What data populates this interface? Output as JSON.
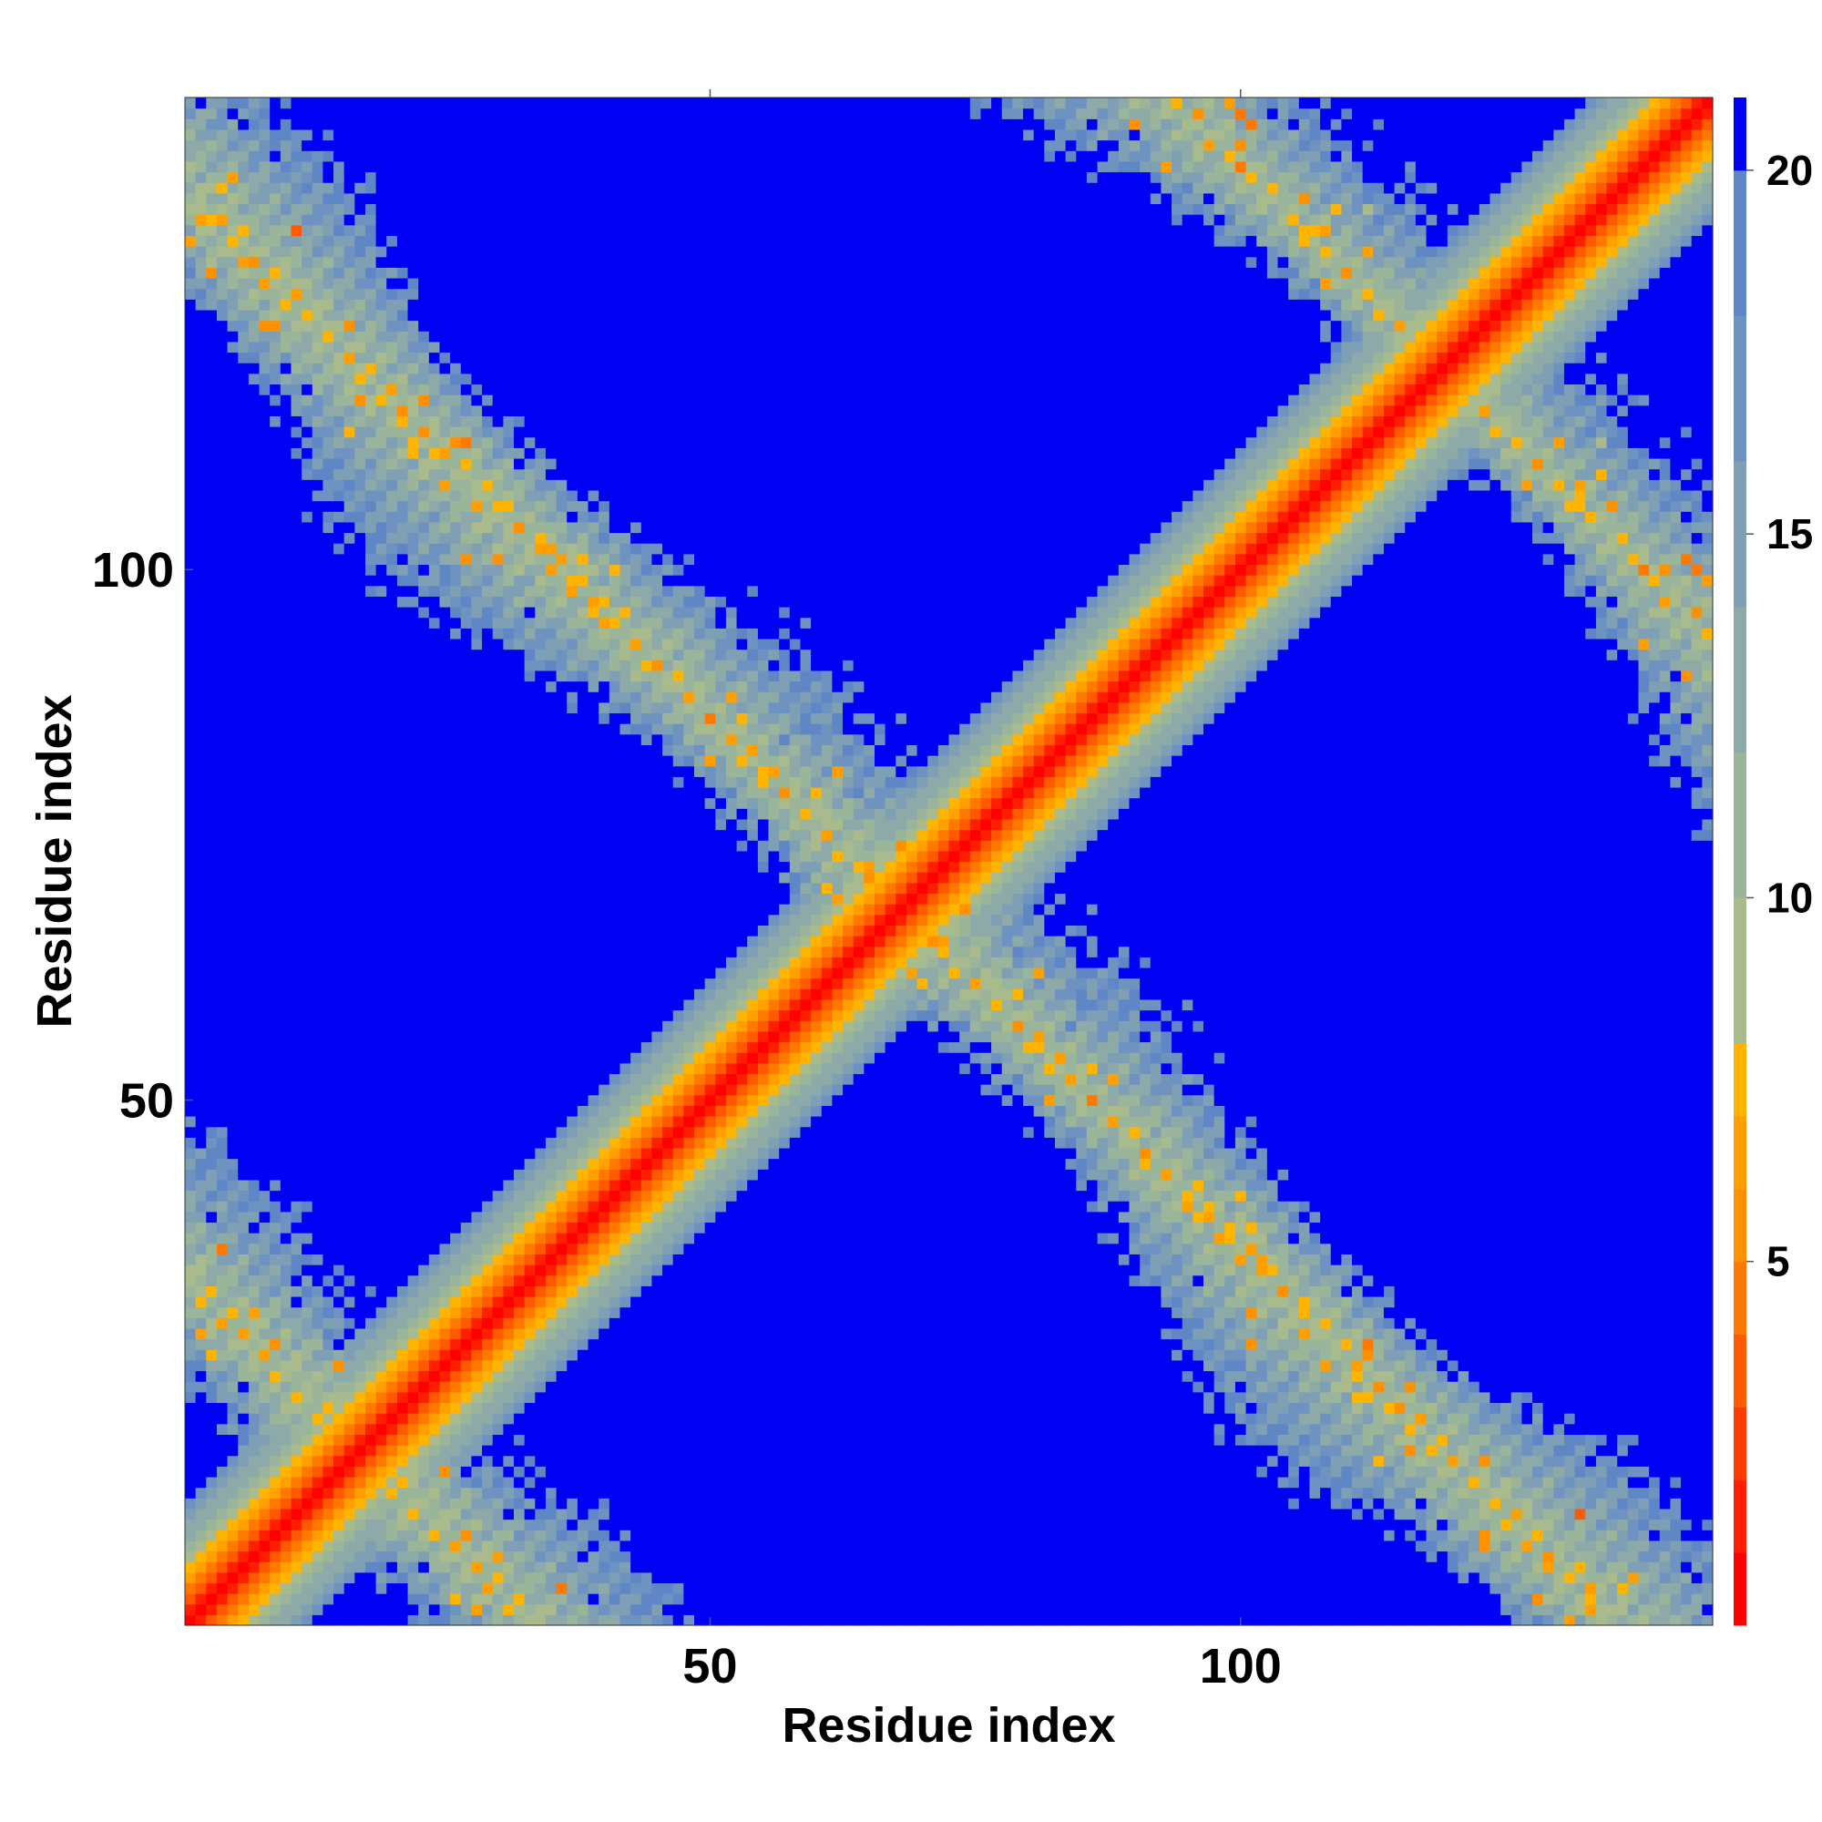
{
  "chart_data": {
    "type": "heatmap",
    "title": "",
    "xlabel": "Residue index",
    "ylabel": "Residue index",
    "x_range": [
      1,
      144
    ],
    "y_range": [
      1,
      144
    ],
    "x_ticks": [
      50,
      100
    ],
    "y_ticks": [
      50,
      100
    ],
    "colorbar_ticks": [
      5,
      10,
      15,
      20
    ],
    "colorbar_range": [
      0,
      21
    ],
    "grid": false,
    "legend": "colorbar-right",
    "description_of_values": "symmetric residue-residue distance map",
    "colormap": [
      {
        "max": 1,
        "color": "#ff0000"
      },
      {
        "max": 2,
        "color": "#ff1e00"
      },
      {
        "max": 3,
        "color": "#ff3c00"
      },
      {
        "max": 4,
        "color": "#ff5a00"
      },
      {
        "max": 5,
        "color": "#ff7800"
      },
      {
        "max": 6,
        "color": "#ff9000"
      },
      {
        "max": 7,
        "color": "#ffa000"
      },
      {
        "max": 8,
        "color": "#ffb400"
      },
      {
        "max": 10,
        "color": "#a9bb8c"
      },
      {
        "max": 12,
        "color": "#9bb59a"
      },
      {
        "max": 14,
        "color": "#8daaa9"
      },
      {
        "max": 16,
        "color": "#7f9fb5"
      },
      {
        "max": 18,
        "color": "#6f93c0"
      },
      {
        "max": 20,
        "color": "#5f86c5"
      },
      {
        "max": 21,
        "color": "#0000f5"
      }
    ],
    "structure": {
      "n_residues": 144,
      "diagonal_band_halfwidth": 7,
      "cross_band_centers_i_plus_j": [
        34,
        136,
        238
      ],
      "cross_band_halfwidth": 12,
      "helix_periodicity": 3.6,
      "background_value": 21
    }
  }
}
